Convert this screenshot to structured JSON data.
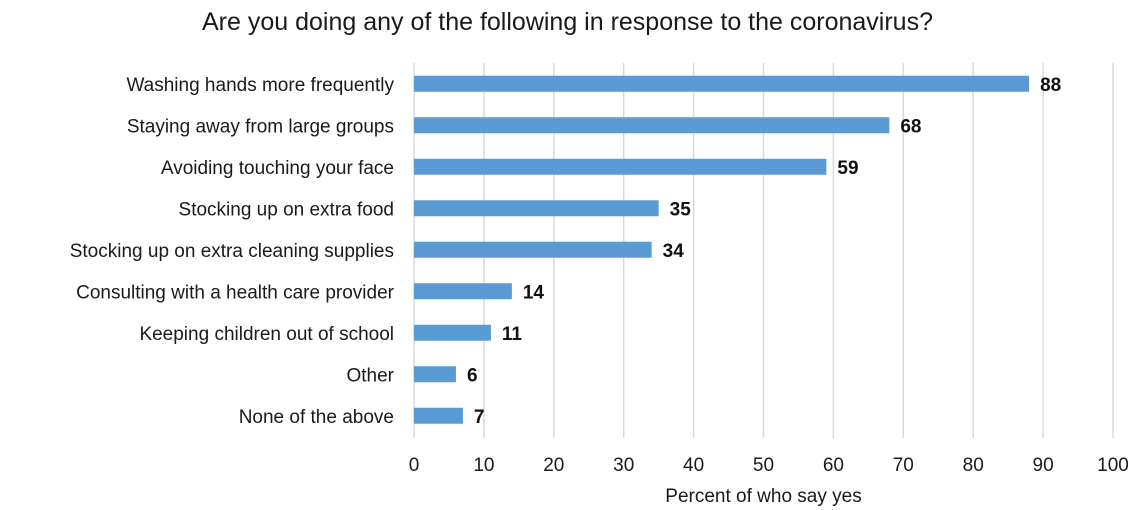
{
  "chart_data": {
    "type": "bar",
    "orientation": "horizontal",
    "title": "Are you doing any of the following in response to the coronavirus?",
    "xlabel": "Percent of who say yes",
    "ylabel": "",
    "categories": [
      "Washing hands more frequently",
      "Staying away from large groups",
      "Avoiding touching your face",
      "Stocking up on extra food",
      "Stocking up on extra cleaning supplies",
      "Consulting with a health care provider",
      "Keeping children out of school",
      "Other",
      "None of the above"
    ],
    "values": [
      88,
      68,
      59,
      35,
      34,
      14,
      11,
      6,
      7
    ],
    "xlim": [
      0,
      100
    ],
    "xticks": [
      0,
      10,
      20,
      30,
      40,
      50,
      60,
      70,
      80,
      90,
      100
    ],
    "grid": "vertical",
    "legend": "none",
    "bar_color": "#5b9bd5",
    "grid_color": "#d9d9d9"
  }
}
